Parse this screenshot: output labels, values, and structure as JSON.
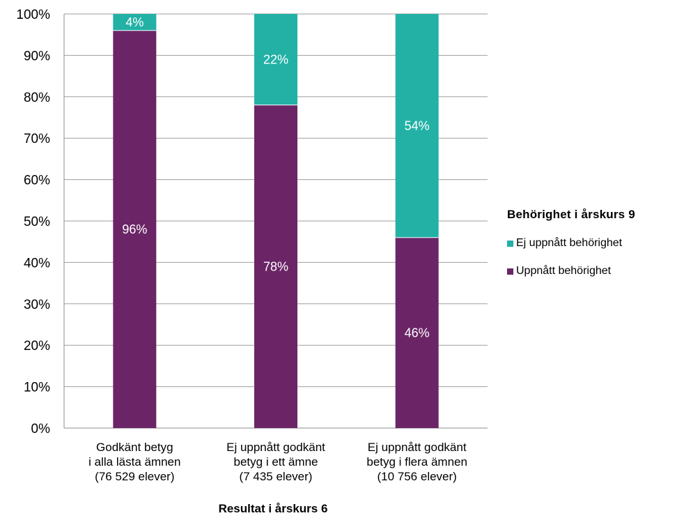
{
  "chart_data": {
    "type": "bar",
    "stacked": true,
    "categories": [
      [
        "Godkänt betyg",
        "i alla lästa ämnen",
        "(76 529 elever)"
      ],
      [
        "Ej uppnått godkänt",
        "betyg i ett ämne",
        "(7 435 elever)"
      ],
      [
        "Ej uppnått godkänt",
        "betyg i flera ämnen",
        "(10 756 elever)"
      ]
    ],
    "series": [
      {
        "name": "Uppnått behörighet",
        "values": [
          96,
          78,
          46
        ],
        "labels": [
          "96%",
          "78%",
          "46%"
        ],
        "color": "#6B2567"
      },
      {
        "name": "Ej uppnått behörighet",
        "values": [
          4,
          22,
          54
        ],
        "labels": [
          "4%",
          "22%",
          "54%"
        ],
        "color": "#23B1A6"
      }
    ],
    "xlabel": "Resultat i årskurs 6",
    "ylabel": "",
    "ylim": [
      0,
      100
    ],
    "yticks": [
      "0%",
      "10%",
      "20%",
      "30%",
      "40%",
      "50%",
      "60%",
      "70%",
      "80%",
      "90%",
      "100%"
    ],
    "grid": true,
    "legend": {
      "title": "Behörighet i årskurs 9",
      "placement": "right",
      "items": [
        {
          "label": "Ej uppnått behörighet",
          "color": "#23B1A6"
        },
        {
          "label": "Uppnått behörighet",
          "color": "#6B2567"
        }
      ]
    }
  }
}
